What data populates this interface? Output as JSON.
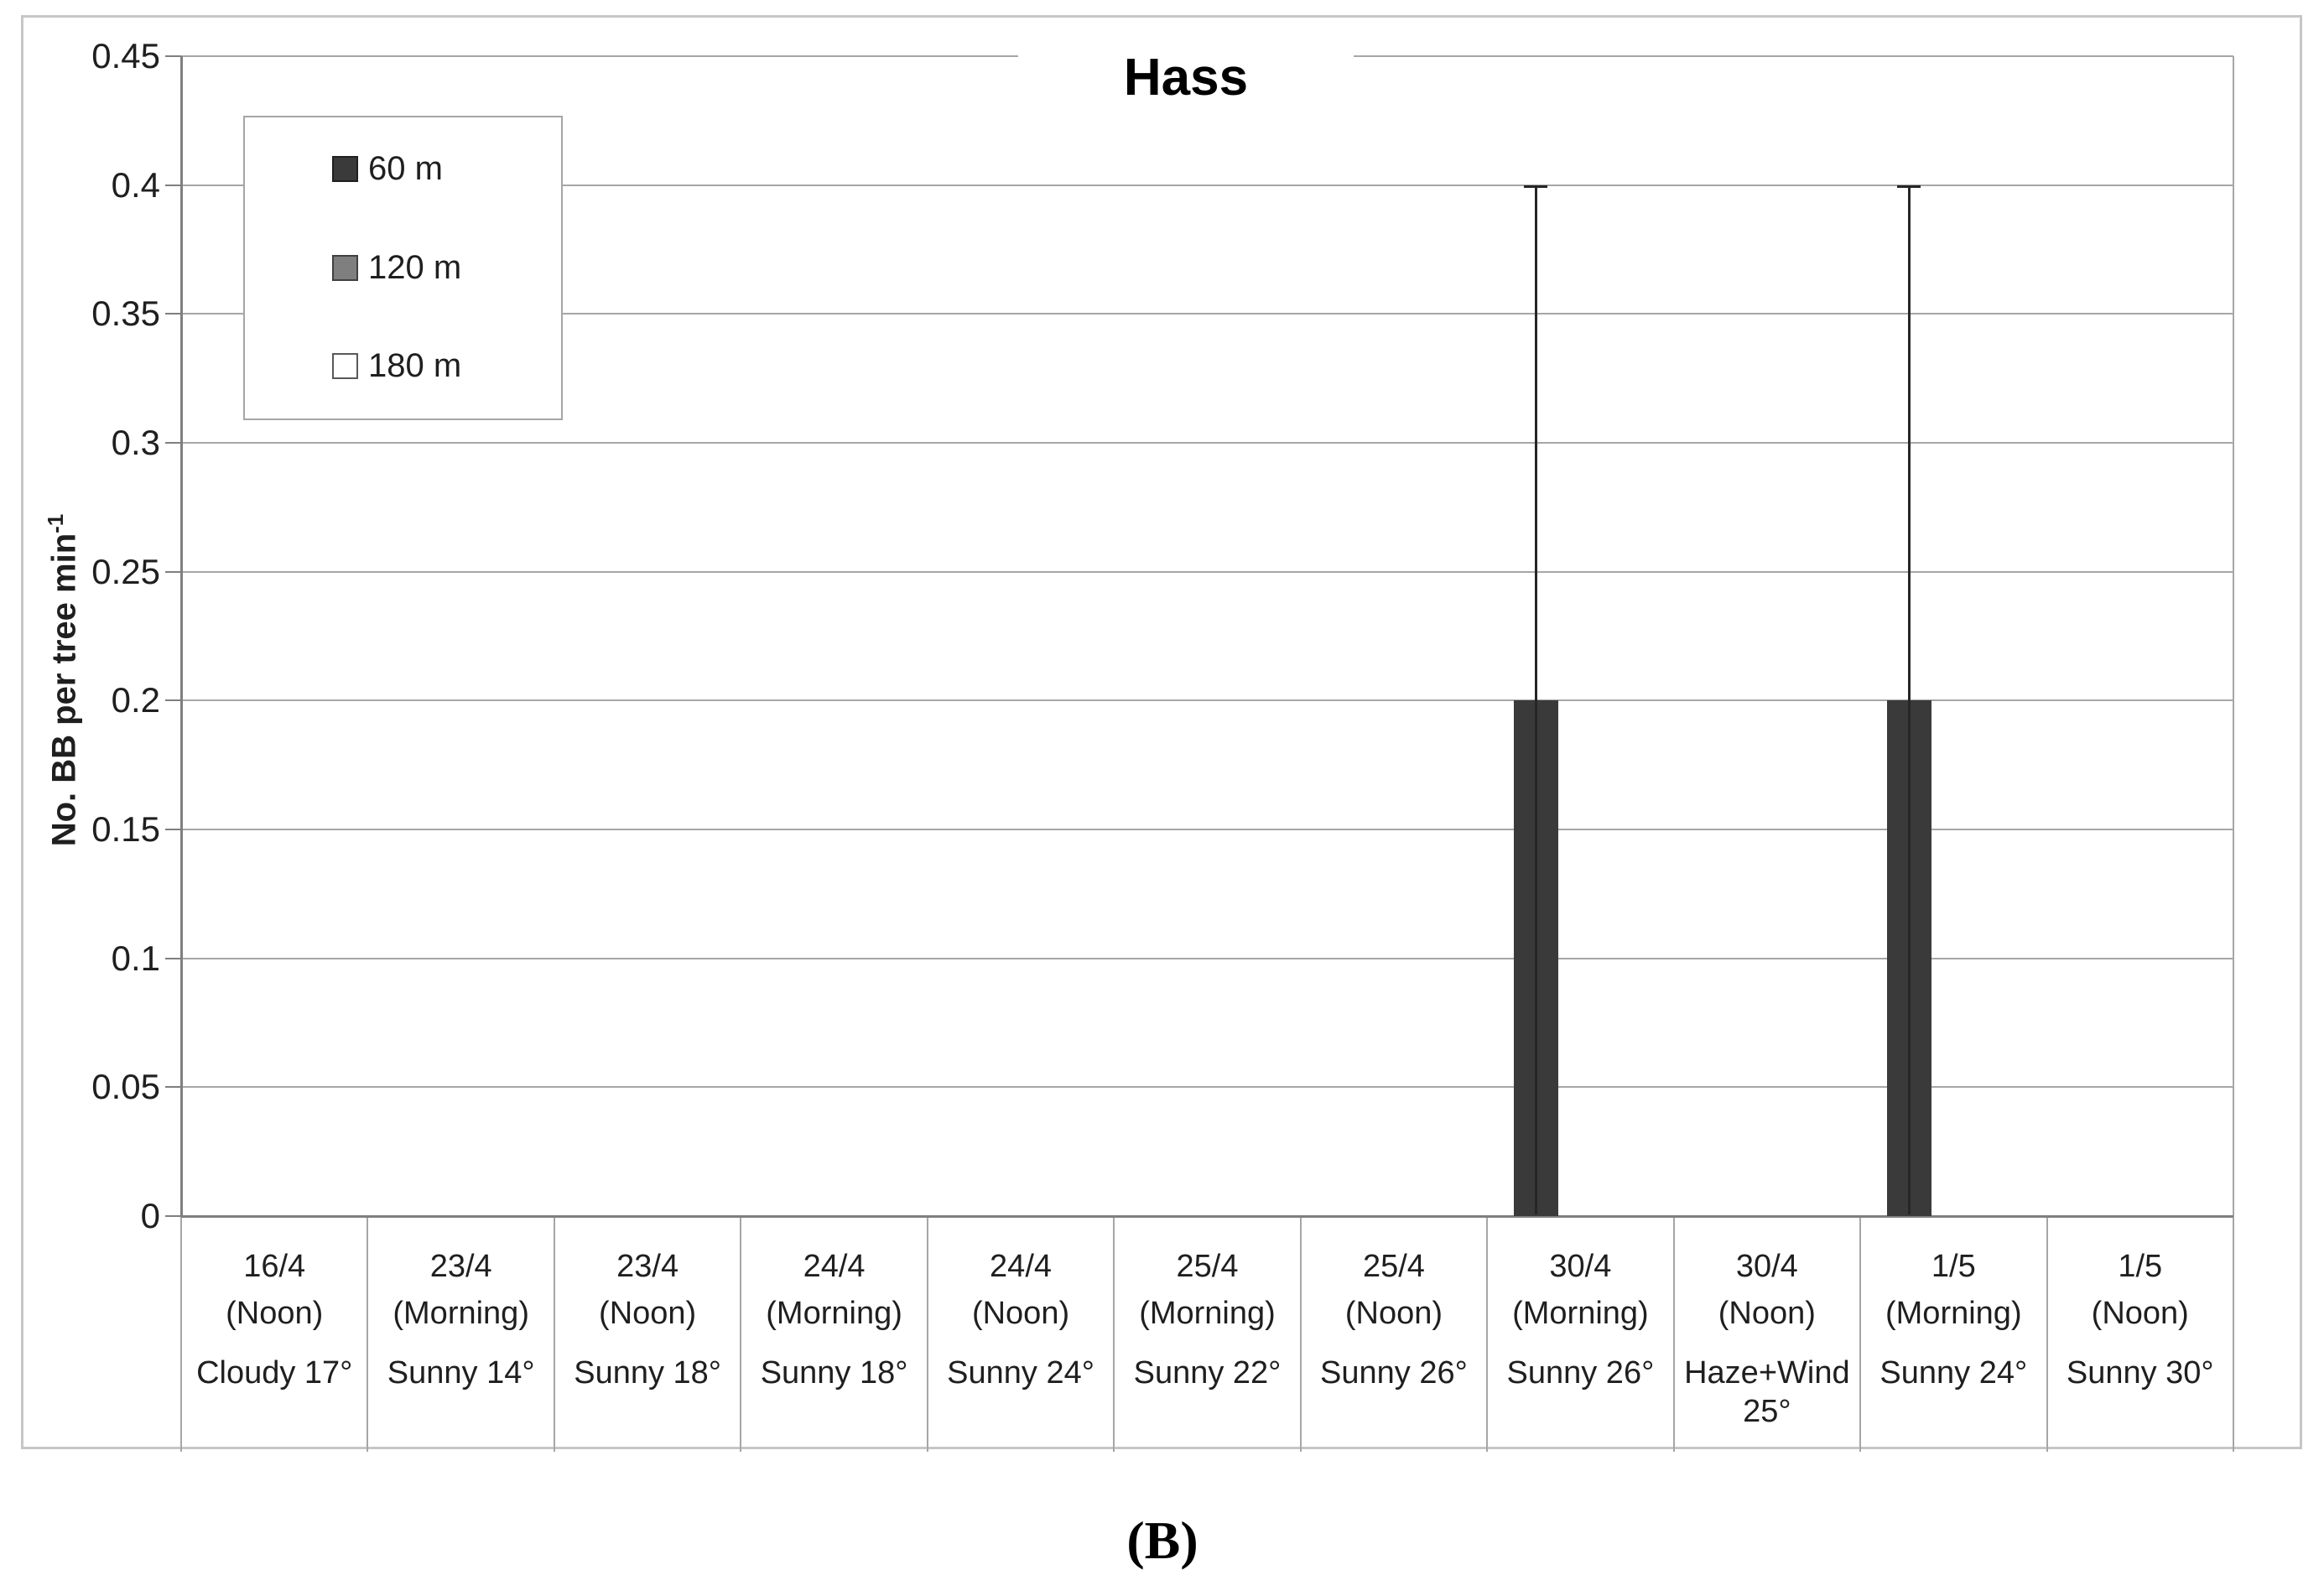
{
  "title": "Hass",
  "caption": "(B)",
  "y_axis_title": {
    "main": "No. BB per tree min",
    "superscript": "-1"
  },
  "colors": {
    "series_60m": "#3a3a3a",
    "series_120m": "#7f7f7f",
    "series_180m": "#ffffff",
    "gridline": "#a6a6a6",
    "axis": "#7f7f7f",
    "chart_border": "#c6c6c6"
  },
  "chart_data": {
    "type": "bar",
    "title": "Hass",
    "ylabel": "No. BB per tree min^-1",
    "xlabel": "",
    "ylim": [
      0,
      0.45
    ],
    "yticks": [
      0,
      0.05,
      0.1,
      0.15,
      0.2,
      0.25,
      0.3,
      0.35,
      0.4,
      0.45
    ],
    "grid": true,
    "legend_position": "upper-left",
    "categories": [
      {
        "date": "16/4",
        "time": "(Noon)",
        "weather": "Cloudy 17°"
      },
      {
        "date": "23/4",
        "time": "(Morning)",
        "weather": "Sunny 14°"
      },
      {
        "date": "23/4",
        "time": "(Noon)",
        "weather": "Sunny 18°"
      },
      {
        "date": "24/4",
        "time": "(Morning)",
        "weather": "Sunny 18°"
      },
      {
        "date": "24/4",
        "time": "(Noon)",
        "weather": "Sunny 24°"
      },
      {
        "date": "25/4",
        "time": "(Morning)",
        "weather": "Sunny 22°"
      },
      {
        "date": "25/4",
        "time": "(Noon)",
        "weather": "Sunny 26°"
      },
      {
        "date": "30/4",
        "time": "(Morning)",
        "weather": "Sunny 26°"
      },
      {
        "date": "30/4",
        "time": "(Noon)",
        "weather": "Haze+Wind 25°"
      },
      {
        "date": "1/5",
        "time": "(Morning)",
        "weather": "Sunny 24°"
      },
      {
        "date": "1/5",
        "time": "(Noon)",
        "weather": "Sunny 30°"
      }
    ],
    "series": [
      {
        "name": "60 m",
        "fill": "#3a3a3a",
        "edge": "#1f1f1f",
        "values": [
          0,
          0,
          0,
          0,
          0,
          0,
          0,
          0.2,
          0,
          0.2,
          0
        ]
      },
      {
        "name": "120 m",
        "fill": "#7f7f7f",
        "edge": "#404040",
        "values": [
          0,
          0,
          0,
          0,
          0,
          0,
          0,
          0,
          0,
          0,
          0
        ]
      },
      {
        "name": "180 m",
        "fill": "#ffffff",
        "edge": "#595959",
        "values": [
          0,
          0,
          0,
          0,
          0,
          0,
          0,
          0,
          0,
          0,
          0
        ]
      }
    ],
    "error_bars": {
      "series": "60 m",
      "plus": [
        0,
        0,
        0,
        0,
        0,
        0,
        0,
        0.2,
        0,
        0.2,
        0
      ]
    }
  }
}
